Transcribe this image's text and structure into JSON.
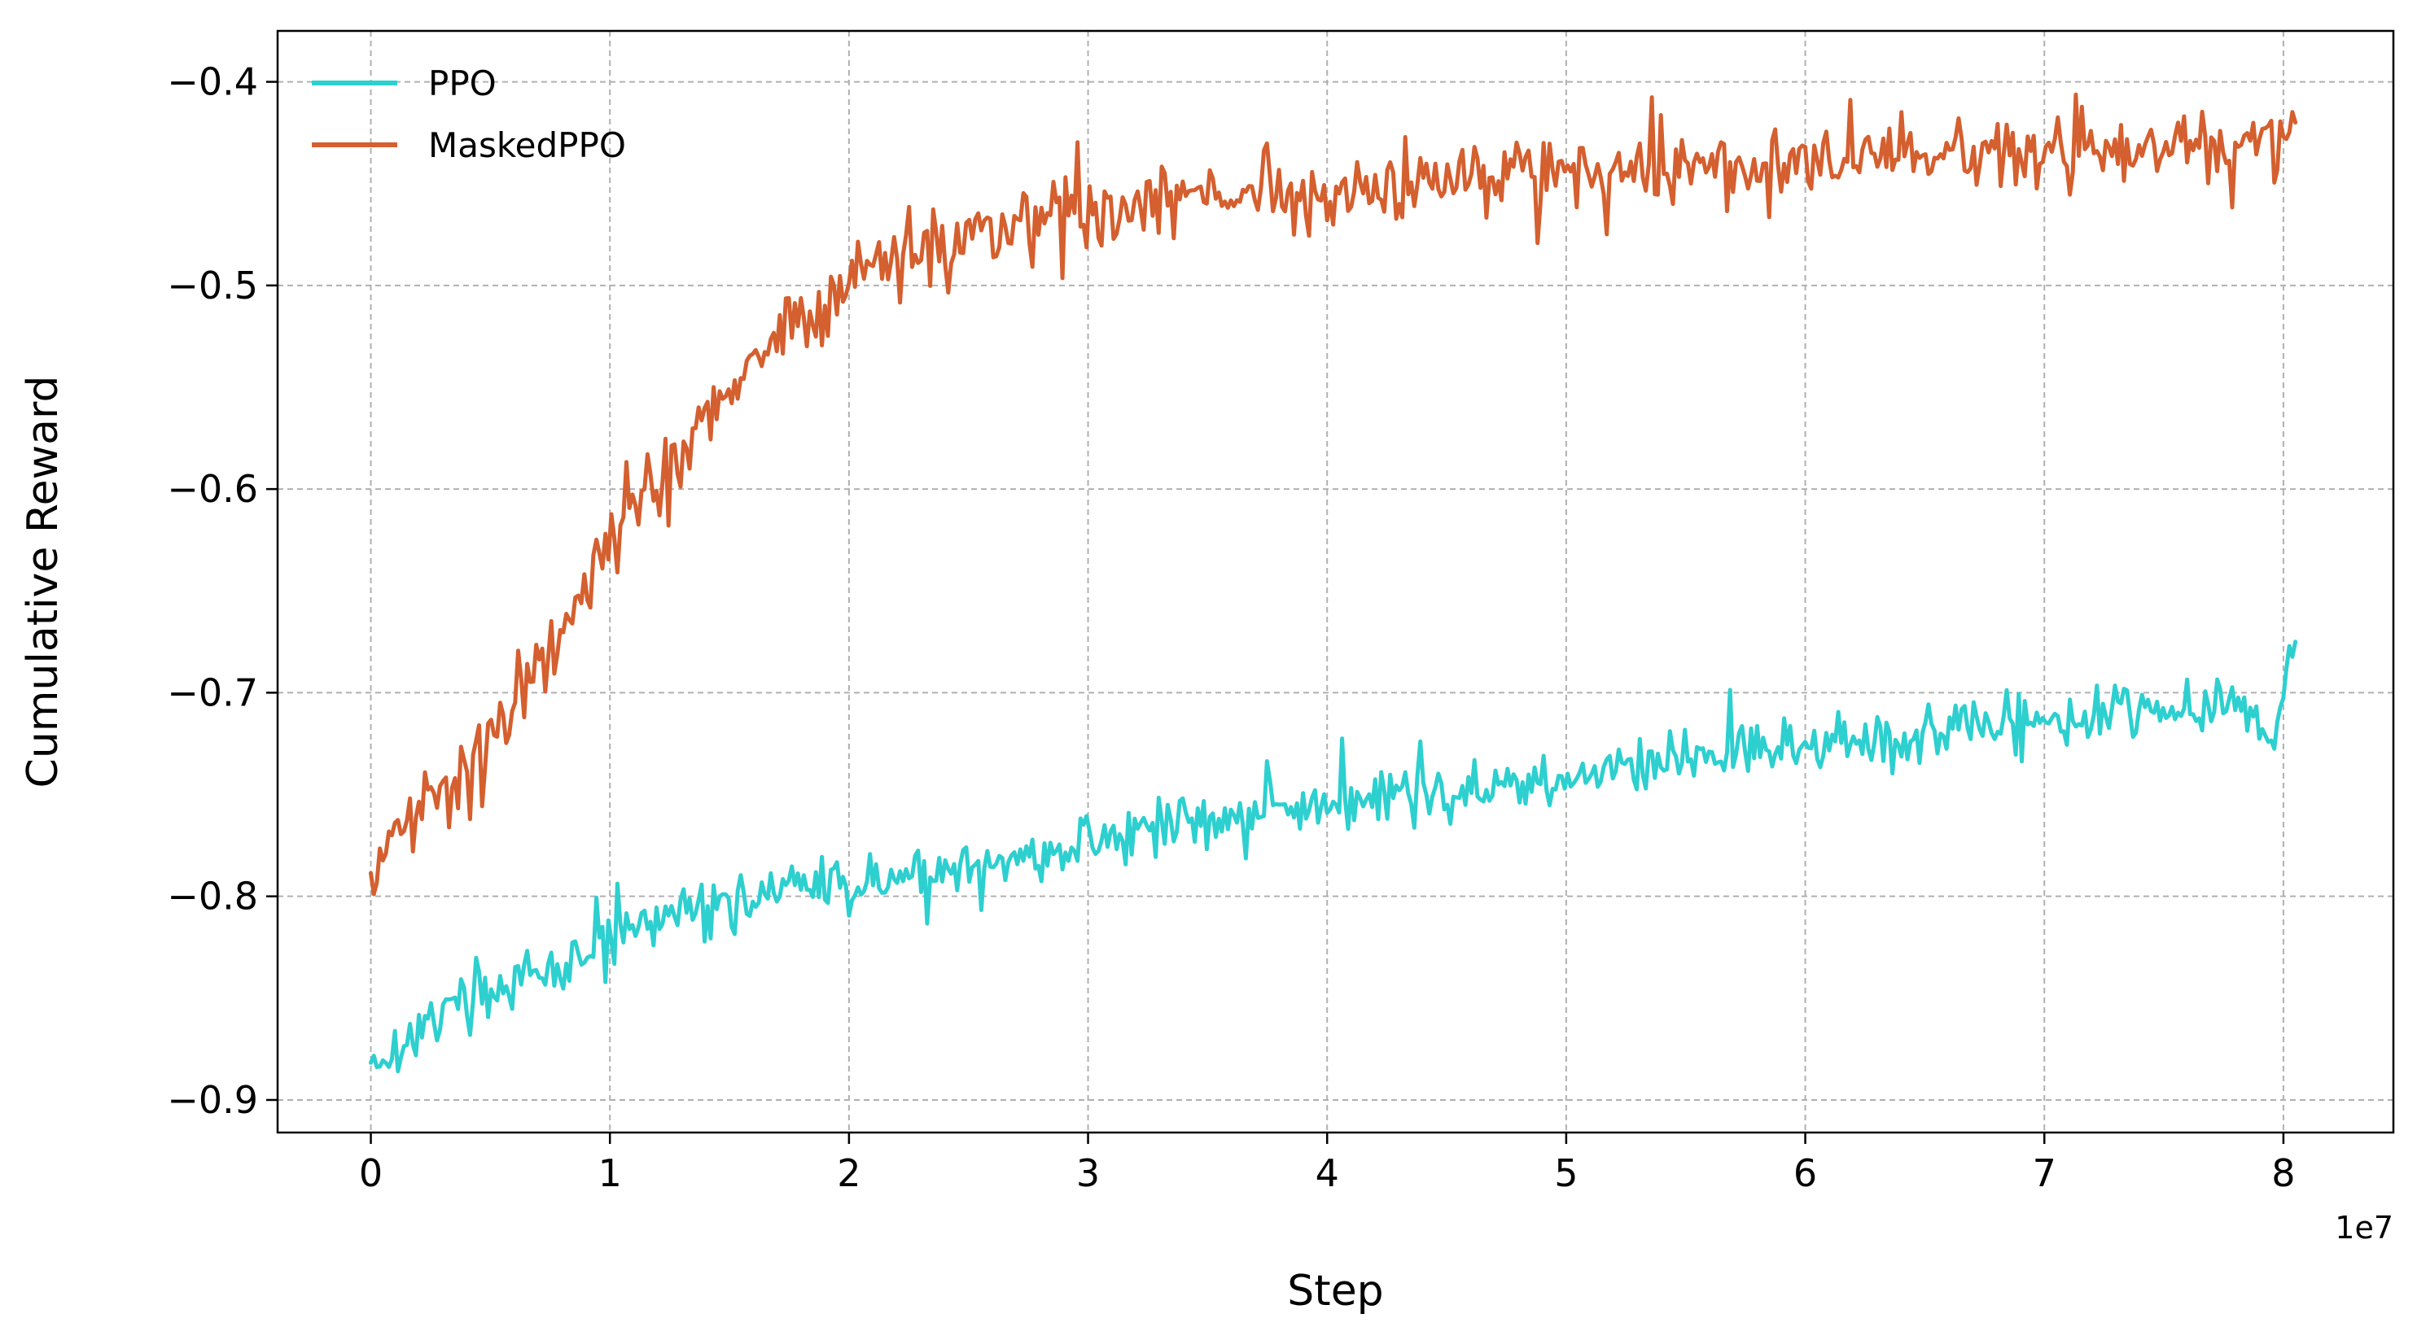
{
  "chart_data": {
    "type": "line",
    "title": "",
    "xlabel": "Step",
    "ylabel": "Cumulative Reward",
    "x_offset_label": "1e7",
    "xlim": [
      -0.39,
      8.46
    ],
    "ylim": [
      -0.916,
      -0.375
    ],
    "x_ticks": [
      0,
      1,
      2,
      3,
      4,
      5,
      6,
      7,
      8
    ],
    "x_tick_labels": [
      "0",
      "1",
      "2",
      "3",
      "4",
      "5",
      "6",
      "7",
      "8"
    ],
    "y_ticks": [
      -0.9,
      -0.8,
      -0.7,
      -0.6,
      -0.5,
      -0.4
    ],
    "y_tick_labels": [
      "−0.9",
      "−0.8",
      "−0.7",
      "−0.6",
      "−0.5",
      "−0.4"
    ],
    "grid": true,
    "grid_style": "dashed",
    "legend_position": "top-left",
    "x_unit_scale": 10000000,
    "series": [
      {
        "name": "PPO",
        "color": "#2ecfcf",
        "x": [
          0.0,
          0.1,
          0.2,
          0.3,
          0.4,
          0.5,
          0.6,
          0.7,
          0.8,
          0.9,
          1.0,
          1.2,
          1.4,
          1.6,
          1.8,
          2.0,
          2.2,
          2.4,
          2.6,
          2.8,
          3.0,
          3.2,
          3.4,
          3.6,
          3.8,
          4.0,
          4.2,
          4.4,
          4.6,
          4.8,
          5.0,
          5.2,
          5.4,
          5.6,
          5.8,
          6.0,
          6.2,
          6.4,
          6.6,
          6.8,
          7.0,
          7.2,
          7.4,
          7.6,
          7.8,
          7.95,
          8.05
        ],
        "y": [
          -0.882,
          -0.875,
          -0.866,
          -0.858,
          -0.851,
          -0.846,
          -0.843,
          -0.839,
          -0.834,
          -0.828,
          -0.822,
          -0.812,
          -0.805,
          -0.8,
          -0.797,
          -0.795,
          -0.791,
          -0.787,
          -0.783,
          -0.779,
          -0.774,
          -0.768,
          -0.764,
          -0.76,
          -0.757,
          -0.754,
          -0.752,
          -0.749,
          -0.747,
          -0.744,
          -0.742,
          -0.738,
          -0.734,
          -0.731,
          -0.729,
          -0.726,
          -0.724,
          -0.721,
          -0.719,
          -0.716,
          -0.713,
          -0.711,
          -0.709,
          -0.706,
          -0.703,
          -0.72,
          -0.675
        ]
      },
      {
        "name": "MaskedPPO",
        "color": "#d45f2f",
        "x": [
          0.0,
          0.1,
          0.2,
          0.3,
          0.4,
          0.5,
          0.6,
          0.7,
          0.8,
          0.9,
          1.0,
          1.2,
          1.4,
          1.6,
          1.8,
          2.0,
          2.2,
          2.4,
          2.6,
          2.8,
          3.0,
          3.2,
          3.4,
          3.6,
          3.8,
          4.0,
          4.2,
          4.4,
          4.6,
          4.8,
          5.0,
          5.2,
          5.4,
          5.6,
          5.8,
          6.0,
          6.2,
          6.4,
          6.6,
          6.8,
          7.0,
          7.2,
          7.4,
          7.6,
          7.8,
          7.95,
          8.05
        ],
        "y": [
          -0.795,
          -0.77,
          -0.758,
          -0.748,
          -0.735,
          -0.72,
          -0.705,
          -0.69,
          -0.67,
          -0.648,
          -0.627,
          -0.592,
          -0.562,
          -0.537,
          -0.516,
          -0.499,
          -0.487,
          -0.478,
          -0.471,
          -0.466,
          -0.462,
          -0.459,
          -0.457,
          -0.456,
          -0.455,
          -0.453,
          -0.451,
          -0.449,
          -0.447,
          -0.446,
          -0.445,
          -0.444,
          -0.443,
          -0.442,
          -0.441,
          -0.44,
          -0.439,
          -0.438,
          -0.437,
          -0.436,
          -0.435,
          -0.434,
          -0.433,
          -0.432,
          -0.431,
          -0.43,
          -0.42
        ]
      }
    ]
  }
}
